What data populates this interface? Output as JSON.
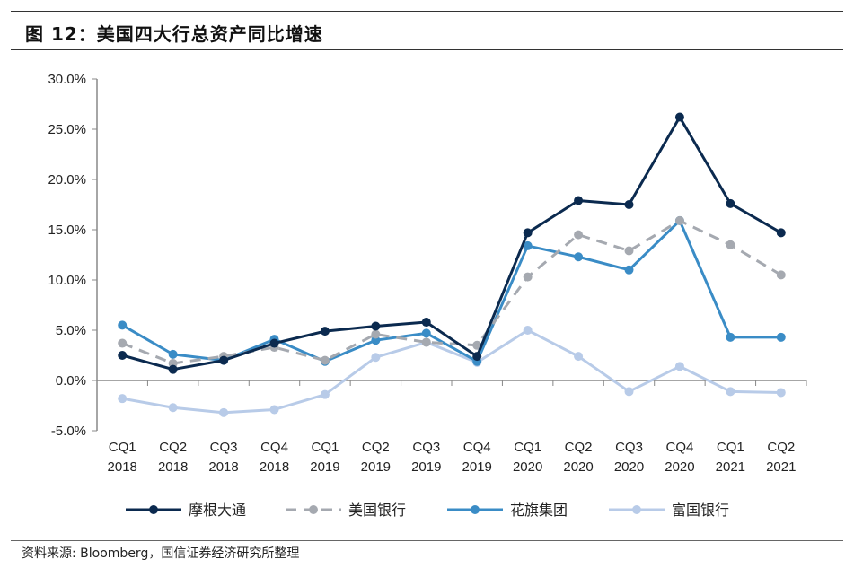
{
  "chart_data": {
    "type": "line",
    "title": "图 12：美国四大行总资产同比增速",
    "categories": [
      [
        "CQ1",
        "2018"
      ],
      [
        "CQ2",
        "2018"
      ],
      [
        "CQ3",
        "2018"
      ],
      [
        "CQ4",
        "2018"
      ],
      [
        "CQ1",
        "2019"
      ],
      [
        "CQ2",
        "2019"
      ],
      [
        "CQ3",
        "2019"
      ],
      [
        "CQ4",
        "2019"
      ],
      [
        "CQ1",
        "2020"
      ],
      [
        "CQ2",
        "2020"
      ],
      [
        "CQ3",
        "2020"
      ],
      [
        "CQ4",
        "2020"
      ],
      [
        "CQ1",
        "2021"
      ],
      [
        "CQ2",
        "2021"
      ]
    ],
    "ylim": [
      -5,
      30
    ],
    "yticks": [
      30,
      25,
      20,
      15,
      10,
      5,
      0,
      -5
    ],
    "ytick_labels": [
      "30.0%",
      "25.0%",
      "20.0%",
      "15.0%",
      "10.0%",
      "5.0%",
      "0.0%",
      "-5.0%"
    ],
    "grid": false,
    "legend_position": "bottom",
    "series": [
      {
        "name": "摩根大通",
        "color": "#0b2a4f",
        "dash": false,
        "values": [
          2.5,
          1.1,
          2.0,
          3.7,
          4.9,
          5.4,
          5.8,
          2.4,
          14.7,
          17.9,
          17.5,
          26.2,
          17.6,
          14.7
        ]
      },
      {
        "name": "美国银行",
        "color": "#a5a9b0",
        "dash": true,
        "values": [
          3.7,
          1.7,
          2.4,
          3.3,
          2.0,
          4.6,
          3.8,
          3.5,
          10.3,
          14.5,
          12.9,
          15.9,
          13.5,
          10.5
        ]
      },
      {
        "name": "花旗集团",
        "color": "#3a8cc6",
        "dash": false,
        "values": [
          5.5,
          2.6,
          2.0,
          4.1,
          1.9,
          4.0,
          4.7,
          1.9,
          13.4,
          12.3,
          11.0,
          15.9,
          4.3,
          4.3
        ]
      },
      {
        "name": "富国银行",
        "color": "#b8cbe8",
        "dash": false,
        "values": [
          -1.8,
          -2.7,
          -3.2,
          -2.9,
          -1.4,
          2.3,
          3.8,
          1.8,
          5.0,
          2.4,
          -1.1,
          1.4,
          -1.1,
          -1.2
        ]
      }
    ]
  },
  "source": "资料来源: Bloomberg，国信证券经济研究所整理"
}
